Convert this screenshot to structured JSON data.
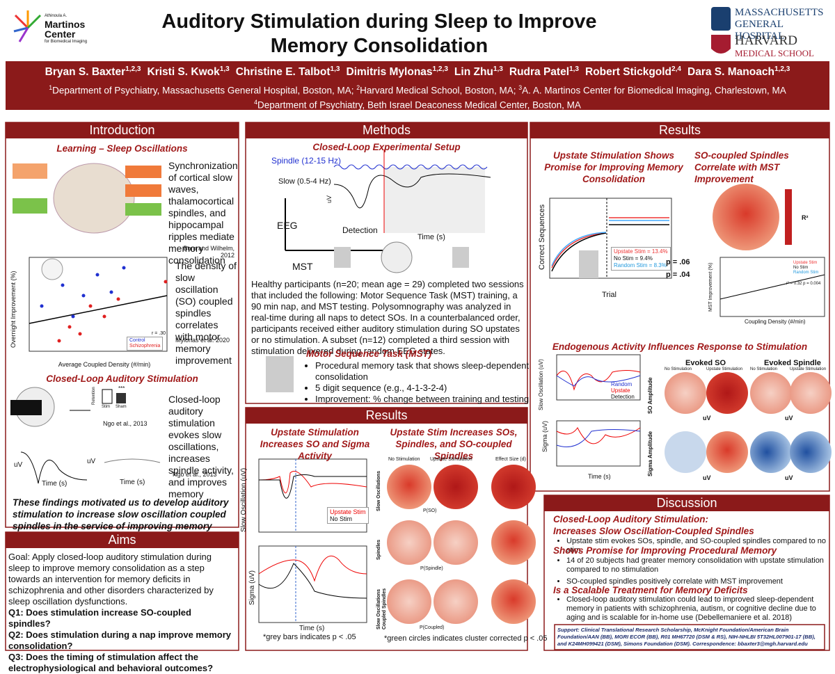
{
  "header": {
    "logo_left": [
      "Athinoula A.",
      "Martinos",
      "Center",
      "for Biomedical Imaging"
    ],
    "title": [
      "Auditory Stimulation during Sleep to Improve",
      "Memory Consolidation"
    ],
    "logo_mgh": [
      "MASSACHUSETTS",
      "GENERAL HOSPITAL"
    ],
    "logo_harvard": [
      "HARVARD",
      "MEDICAL SCHOOL"
    ],
    "authors": [
      {
        "name": "Bryan S. Baxter",
        "sup": "1,2,3"
      },
      {
        "name": "Kristi S. Kwok",
        "sup": "1,3"
      },
      {
        "name": "Christine E. Talbot",
        "sup": "1,3"
      },
      {
        "name": "Dimitris Mylonas",
        "sup": "1,2,3"
      },
      {
        "name": "Lin Zhu",
        "sup": "1,3"
      },
      {
        "name": "Rudra Patel",
        "sup": "1,3"
      },
      {
        "name": "Robert Stickgold",
        "sup": "2,4"
      },
      {
        "name": "Dara S. Manoach",
        "sup": "1,2,3"
      }
    ],
    "affiliations": [
      [
        {
          "sup": "1",
          "text": "Department of Psychiatry, Massachusetts General Hospital, Boston, MA; "
        },
        {
          "sup": "2",
          "text": "Harvard Medical School, Boston, MA; "
        },
        {
          "sup": "3",
          "text": "A. A. Martinos Center for Biomedical Imaging, Charlestown, MA"
        }
      ],
      [
        {
          "sup": "4",
          "text": "Department of Psychiatry, Beth Israel Deaconess Medical Center, Boston, MA"
        }
      ]
    ]
  },
  "introduction": {
    "heading": "Introduction",
    "subheading1": "Learning – Sleep Oscillations",
    "text1": "Synchronization of cortical slow waves, thalamocortical spindles, and hippocampal ripples mediate memory consolidation",
    "cite1": "Born and Wilhelm, 2012",
    "text2": "The density of slow oscillation (SO) coupled spindles correlates with motor memory improvement",
    "cite2": "Mylonas et al. 2020",
    "scatter": {
      "xlabel": "Average Coupled Density (#/min)",
      "ylabel": "Overnight Improvement (%)",
      "legend": [
        "Control",
        "Schizophrenia"
      ],
      "stat": "r = .30"
    },
    "subheading2": "Closed-Loop Auditory Stimulation",
    "text3": "Closed-loop auditory stimulation evokes slow oscillations, increases spindle activity, and improves memory",
    "figure_cite": "Ngo et al., 2013",
    "cite3": "Ngo et al., 2013",
    "figure_labels": {
      "bars": [
        "Stim",
        "Sham"
      ],
      "sig": "***",
      "ylabel": "Retention",
      "time": "Time (s)",
      "uv": "uV"
    },
    "conclusion": "These findings motivated us to develop auditory stimulation to increase slow oscillation coupled spindles in the service of improving memory"
  },
  "aims": {
    "heading": "Aims",
    "goal": "Goal: Apply closed-loop auditory stimulation during sleep to improve memory consolidation as a step towards an intervention for memory deficits in schizophrenia and other disorders characterized by sleep oscillation dysfunctions.",
    "questions": [
      "Q1: Does stimulation increase SO-coupled spindles?",
      "Q2: Does stimulation during a nap improve memory consolidation?",
      "Q3: Does the timing of stimulation affect the electrophysiological and behavioral outcomes?"
    ]
  },
  "methods": {
    "heading": "Methods",
    "subheading1": "Closed-Loop Experimental Setup",
    "figure_labels": {
      "spindle": "Spindle (12-15 Hz)",
      "slow": "Slow (0.5-4 Hz)",
      "eeg": "EEG",
      "detection": "Detection",
      "time": "Time (s)",
      "mst": "MST",
      "uv": "uV"
    },
    "paragraph": "Healthy participants (n=20; mean age = 29) completed two sessions that included the following: Motor Sequence Task (MST) training, a 90 min nap, and MST testing. Polysomnography was analyzed in real-time during all naps to detect SOs. In a counterbalanced order, participants received either auditory stimulation during SO upstates or no stimulation. A subset (n=12) completed a third session with stimulation delivered during random EEG states.",
    "subheading2": "Motor Sequence Task (MST)",
    "bullets": [
      "Procedural memory task that shows sleep-dependent consolidation",
      "5 digit sequence (e.g., 4-1-3-2-4)",
      "Improvement: % change between training and testing"
    ]
  },
  "results_center": {
    "heading": "Results",
    "subheading1": "Upstate Stimulation Increases SO and Sigma Activity",
    "ylabel1": "Slow Oscillation (uV)",
    "ylabel2": "Sigma (uV)",
    "xlabel": "Time (s)",
    "legend": [
      "Upstate Stim",
      "No Stim"
    ],
    "note1": "*grey bars indicates p < .05",
    "subheading2": "Upstate Stim Increases SOs, Spindles, and SO-coupled Spindles",
    "columns": [
      "No Stimulation",
      "Upstate Stimulation",
      "Effect Size (d)"
    ],
    "rows": [
      "Slow Oscillations",
      "Spindles",
      "Slow Oscillations Coupled Spindles"
    ],
    "colorbars": [
      "P(SO)",
      "P(Spindle)",
      "P(Coupled)"
    ],
    "note2": "*green circles indicates cluster corrected p < .05"
  },
  "results_right": {
    "heading": "Results",
    "subheading1": "Upstate Stimulation Shows Promise for Improving Memory Consolidation",
    "subheading2": "SO-coupled Spindles Correlate with MST Improvement",
    "curve": {
      "ylabel": "Correct Sequences",
      "xlabel": "Trial",
      "legend": [
        "Upstate Stim = 13.4%",
        "No Stim = 9.4%",
        "Random Stim = 8.3%"
      ],
      "p_values": [
        "p = .06",
        "p = .04"
      ]
    },
    "topo_label": "R²",
    "scatter": {
      "ylabel": "MST Improvement (%)",
      "xlabel": "Coupling Density (#/min)",
      "stat": "r² = 0.32  p = 0.004",
      "legend": [
        "Upstate Stim",
        "No Stim",
        "Random Stim"
      ]
    },
    "subheading3": "Endogenous Activity Influences Response to Stimulation",
    "traces": {
      "ylabel1": "Slow Oscillation (uV)",
      "ylabel2": "Sigma (uV)",
      "xlabel": "Time (s)",
      "legend": [
        "Random",
        "Upstate",
        "Detection"
      ]
    },
    "evoked": {
      "titles": [
        "Evoked SO",
        "Evoked Spindle"
      ],
      "columns": [
        "No Stimulation",
        "Upstate Stimulation"
      ],
      "rows": [
        "SO Amplitude",
        "Sigma Amplitude"
      ],
      "unit": "uV"
    }
  },
  "discussion": {
    "heading": "Discussion",
    "subheading1": [
      "Closed-Loop Auditory Stimulation:",
      "Increases Slow Oscillation-Coupled Spindles"
    ],
    "bullets1": [
      "Upstate stim evokes SOs, spindle, and SO-coupled spindles compared to no stim"
    ],
    "subheading2": "Shows Promise for Improving Procedural Memory",
    "bullets2": [
      "14 of 20 subjects had greater memory consolidation with upstate stimulation compared to no stimulation",
      "SO-coupled spindles positively correlate with MST improvement"
    ],
    "subheading3": "Is a Scalable Treatment for Memory Deficits",
    "bullets3": [
      "Closed-loop auditory stimulation could lead to improved sleep-dependent memory in patients with schizophrenia, autism, or cognitive decline due to aging and is scalable for in-home use (Debellemaniere et al. 2018)"
    ],
    "support": "Support: Clinical Translational Research Scholarship, McKnight Foundation/American Brain Foundation/AAN (BB), MGRI ECOR (BB), R01 MH67720 (DSM & RS), NIH-NHLBI 5T32HL007901-17 (BB), and K24MH099421 (DSM), Simons Foundation (DSM).  Correspondence: bbaxter3@mgh.harvard.edu"
  }
}
